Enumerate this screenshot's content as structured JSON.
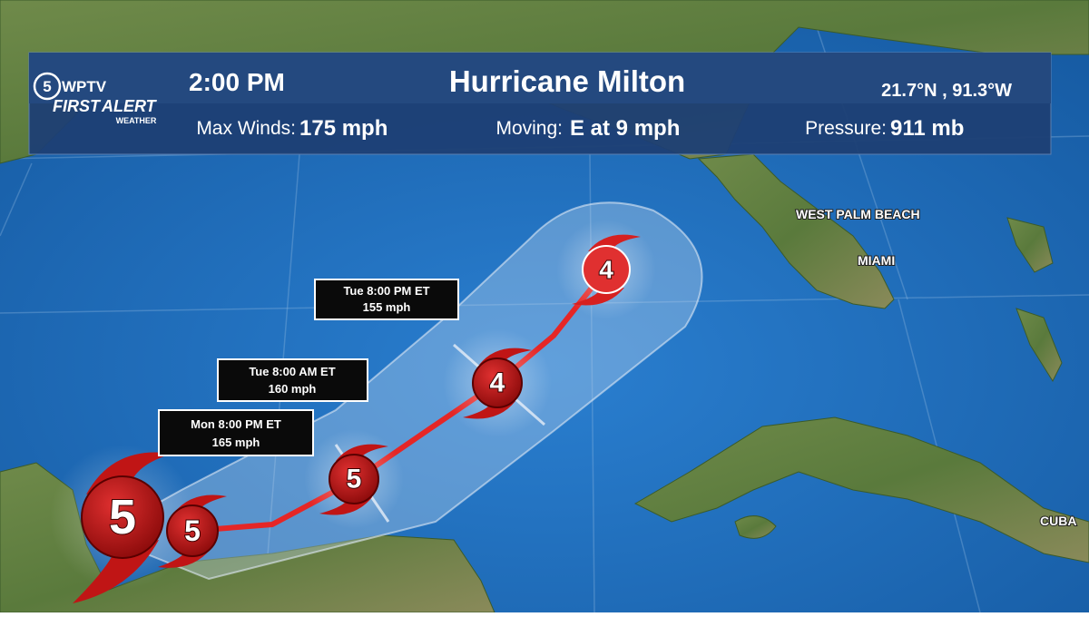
{
  "header": {
    "logo": {
      "channel": "5",
      "name": "WPTV",
      "first": "FIRST",
      "alert": "ALERT",
      "weather": "WEATHER"
    },
    "time": "2:00 PM",
    "storm_name": "Hurricane Milton",
    "position": "21.7°N , 91.3°W",
    "max_winds": {
      "label": "Max Winds:",
      "value": "175 mph"
    },
    "moving": {
      "label": "Moving:",
      "value": "E at 9 mph"
    },
    "pressure": {
      "label": "Pressure:",
      "value": "911 mb"
    }
  },
  "forecast_points": [
    {
      "category": 5
    },
    {
      "category": 5
    },
    {
      "category": 5
    },
    {
      "category": 4
    },
    {
      "category": 4
    }
  ],
  "forecast_labels": [
    {
      "time": "Tue 8:00 PM ET",
      "wind": "155 mph"
    },
    {
      "time": "Tue 8:00 AM ET",
      "wind": "160 mph"
    },
    {
      "time": "Mon 8:00 PM ET",
      "wind": "165 mph"
    }
  ],
  "places": [
    "WEST PALM BEACH",
    "MIAMI",
    "CUBA"
  ]
}
